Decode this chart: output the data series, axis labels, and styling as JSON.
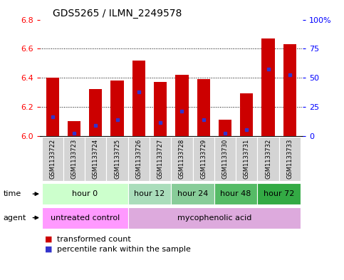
{
  "title": "GDS5265 / ILMN_2249578",
  "samples": [
    "GSM1133722",
    "GSM1133723",
    "GSM1133724",
    "GSM1133725",
    "GSM1133726",
    "GSM1133727",
    "GSM1133728",
    "GSM1133729",
    "GSM1133730",
    "GSM1133731",
    "GSM1133732",
    "GSM1133733"
  ],
  "bar_values": [
    6.4,
    6.1,
    6.32,
    6.38,
    6.52,
    6.37,
    6.42,
    6.39,
    6.11,
    6.29,
    6.67,
    6.63
  ],
  "bar_base": 6.0,
  "blue_marker_values": [
    6.13,
    6.02,
    6.07,
    6.11,
    6.3,
    6.09,
    6.17,
    6.11,
    6.02,
    6.04,
    6.46,
    6.42
  ],
  "ylim_left": [
    6.0,
    6.8
  ],
  "ylim_right": [
    0,
    100
  ],
  "yticks_left": [
    6.0,
    6.2,
    6.4,
    6.6,
    6.8
  ],
  "yticks_right": [
    0,
    25,
    50,
    75,
    100
  ],
  "ytick_right_labels": [
    "0",
    "25",
    "50",
    "75",
    "100%"
  ],
  "bar_color": "#cc0000",
  "blue_marker_color": "#3333cc",
  "time_groups": [
    {
      "label": "hour 0",
      "start": 0,
      "end": 3,
      "color": "#ccffcc"
    },
    {
      "label": "hour 12",
      "start": 4,
      "end": 5,
      "color": "#aaeebb"
    },
    {
      "label": "hour 24",
      "start": 6,
      "end": 7,
      "color": "#88dd99"
    },
    {
      "label": "hour 48",
      "start": 8,
      "end": 9,
      "color": "#55cc66"
    },
    {
      "label": "hour 72",
      "start": 10,
      "end": 11,
      "color": "#33aa44"
    }
  ],
  "agent_groups": [
    {
      "label": "untreated control",
      "start": 0,
      "end": 3,
      "color": "#ff88ff"
    },
    {
      "label": "mycophenolic acid",
      "start": 4,
      "end": 11,
      "color": "#ddaadd"
    }
  ],
  "legend_items": [
    {
      "label": "transformed count",
      "color": "#cc0000"
    },
    {
      "label": "percentile rank within the sample",
      "color": "#3333cc"
    }
  ],
  "fig_bg": "#ffffff",
  "bar_width": 0.6,
  "fontsize_title": 10,
  "fontsize_ticks": 8,
  "fontsize_sample": 6,
  "fontsize_group": 8,
  "fontsize_legend": 8
}
